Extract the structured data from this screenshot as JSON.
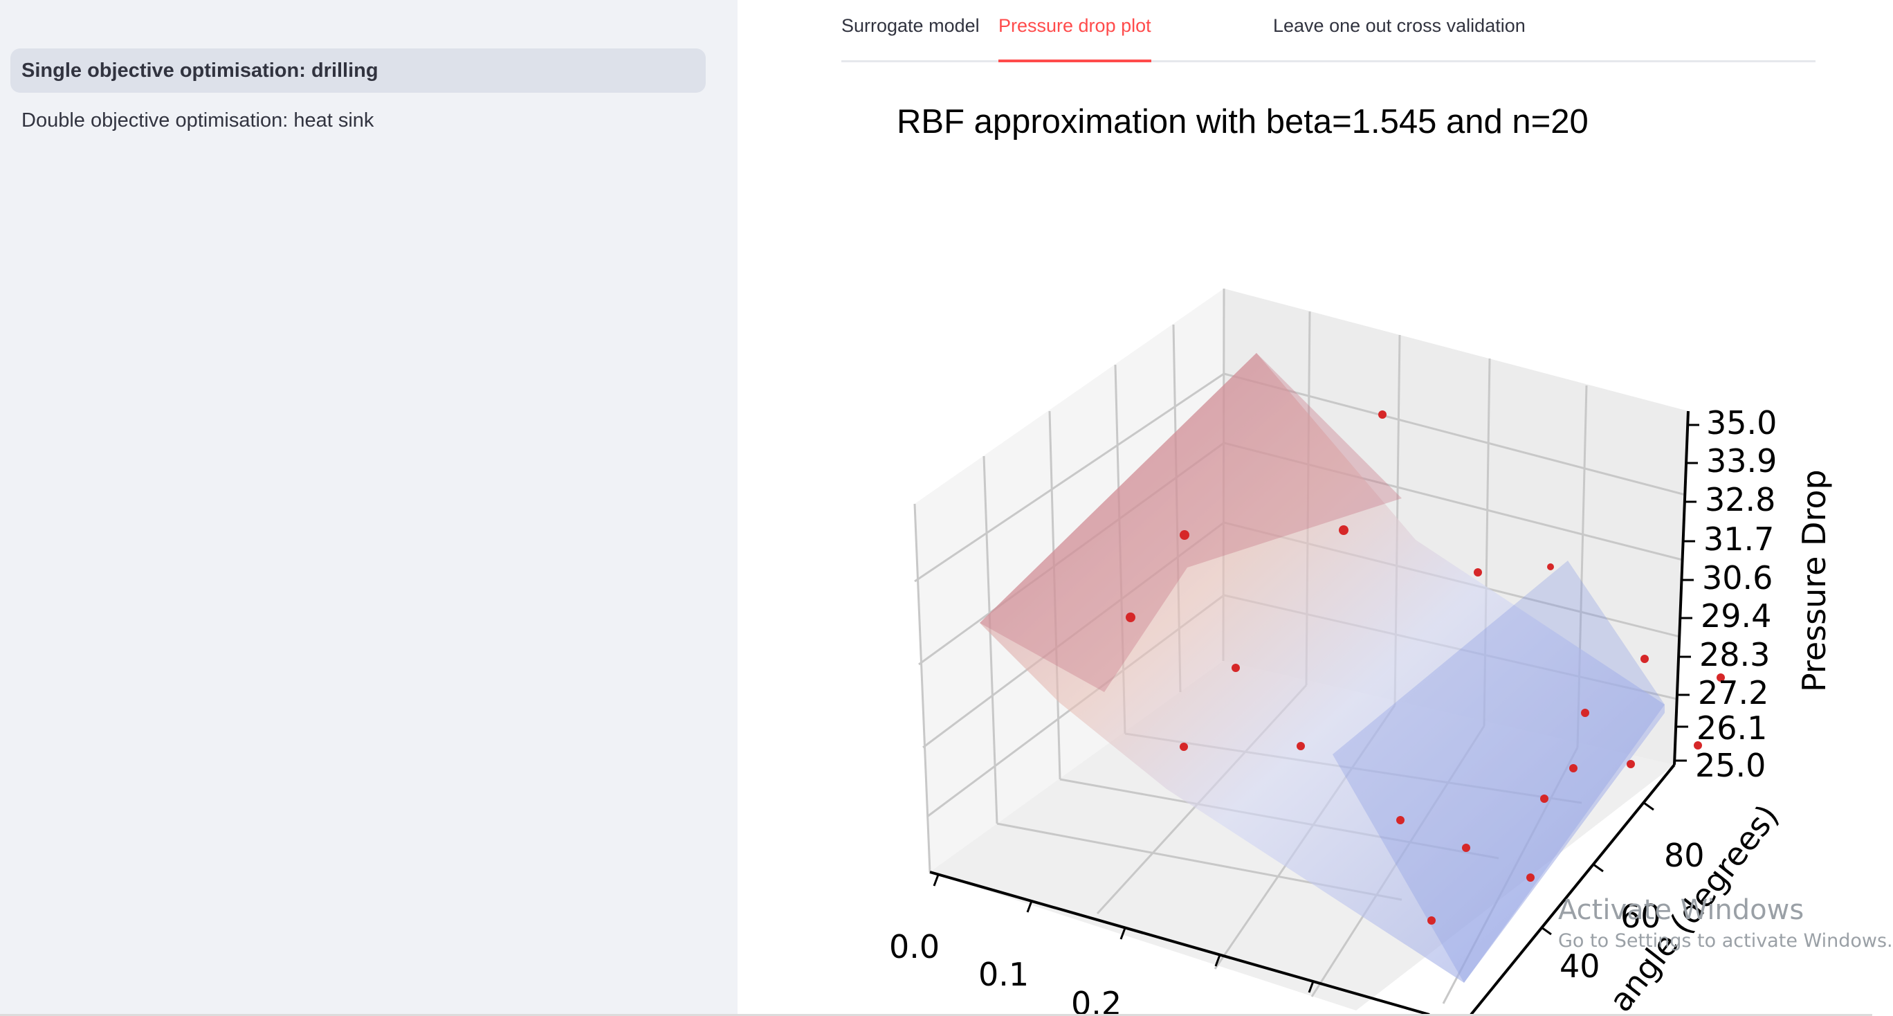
{
  "sidebar": {
    "items": [
      {
        "label": "Single objective optimisation: drilling",
        "active": true
      },
      {
        "label": "Double objective optimisation: heat sink",
        "active": false
      }
    ]
  },
  "tabs": [
    {
      "label": "Surrogate model",
      "active": false
    },
    {
      "label": "Pressure drop plot",
      "active": true
    },
    {
      "label": "Leave one out cross validation",
      "active": false
    }
  ],
  "chart_data": {
    "type": "surface",
    "title": "RBF approximation with beta=1.545 and n=20",
    "xlabel": "",
    "ylabel": "angle (degrees)",
    "zlabel": "Pressure Drop",
    "x_ticks": [
      "0.0",
      "0.1",
      "0.2"
    ],
    "y_ticks": [
      "40",
      "60",
      "80"
    ],
    "z_ticks": [
      "25.0",
      "26.1",
      "27.2",
      "28.3",
      "29.4",
      "30.6",
      "31.7",
      "32.8",
      "33.9",
      "35.0"
    ],
    "zlim": [
      25.0,
      35.0
    ],
    "colormap": [
      "#b40426",
      "#f2ddd0",
      "#3b4cc0"
    ],
    "sample_points_color": "#d62728",
    "sample_count": 20
  },
  "watermark": {
    "line1": "Activate Windows",
    "line2": "Go to Settings to activate Windows."
  }
}
